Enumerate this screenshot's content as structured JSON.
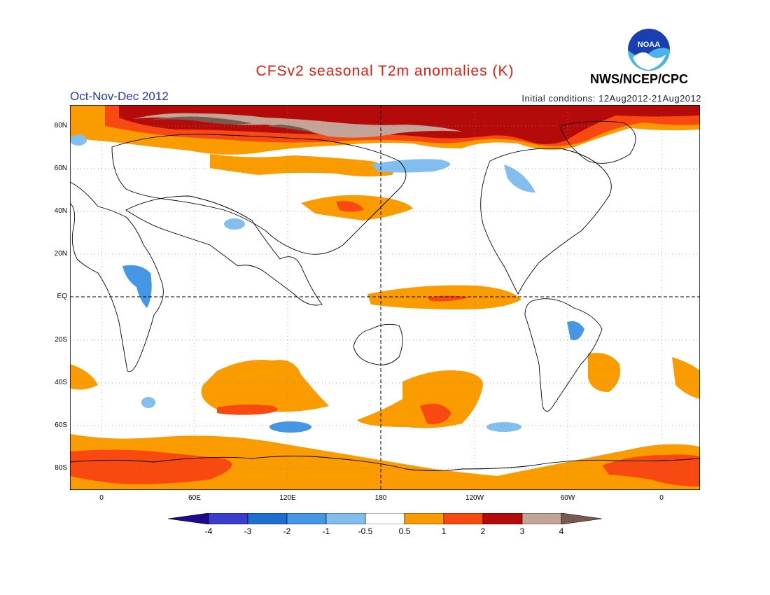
{
  "title": "CFSv2 seasonal T2m anomalies (K)",
  "season": "Oct-Nov-Dec 2012",
  "initial_conditions": "Initial conditions: 12Aug2012-21Aug2012",
  "agency": "NWS/NCEP/CPC",
  "logo_text": "NOAA",
  "lat_labels": [
    "80N",
    "60N",
    "40N",
    "20N",
    "EQ",
    "20S",
    "40S",
    "60S",
    "80S"
  ],
  "lon_labels": [
    "0",
    "60E",
    "120E",
    "180",
    "120W",
    "60W",
    "0"
  ],
  "colorbar": {
    "ticks": [
      "-4",
      "-3",
      "-2",
      "-1",
      "-0.5",
      "0.5",
      "1",
      "2",
      "3",
      "4"
    ],
    "colors": [
      "#1e0a8c",
      "#3c3ccc",
      "#1e6ed2",
      "#4696e6",
      "#82beef",
      "#ffffff",
      "#fa9b00",
      "#f84a10",
      "#b40a0a",
      "#c4a496",
      "#7a5a4e"
    ]
  },
  "legend": {
    "neg4": "#1e0a8c",
    "neg3": "#3c3ccc",
    "neg2": "#1e6ed2",
    "neg1": "#4696e6",
    "neg05": "#82beef",
    "pos05": "#fa9b00",
    "pos1": "#f84a10",
    "pos2": "#b40a0a",
    "pos3": "#c4a496",
    "pos4": "#7a5a4e"
  }
}
